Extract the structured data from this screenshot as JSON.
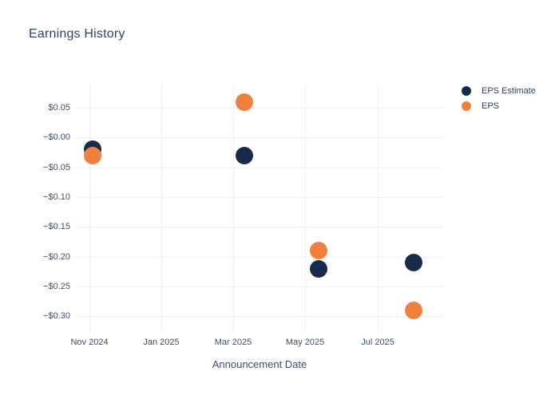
{
  "chart": {
    "title": "Earnings History"
  },
  "chart_data": {
    "type": "scatter",
    "title": "Earnings History",
    "xlabel": "Announcement Date",
    "ylabel": "",
    "grid": true,
    "legend_position": "right-top",
    "xlim": [
      "2024-10-20",
      "2025-08-25"
    ],
    "ylim": [
      -0.33,
      0.09
    ],
    "x_ticks": [
      {
        "date": "2024-11-01",
        "label": "Nov 2024"
      },
      {
        "date": "2025-01-01",
        "label": "Jan 2025"
      },
      {
        "date": "2025-03-01",
        "label": "Mar 2025"
      },
      {
        "date": "2025-05-01",
        "label": "May 2025"
      },
      {
        "date": "2025-07-01",
        "label": "Jul 2025"
      }
    ],
    "y_ticks": [
      {
        "value": 0.05,
        "label": "$0.05"
      },
      {
        "value": 0.0,
        "label": "−$0.00"
      },
      {
        "value": -0.05,
        "label": "−$0.05"
      },
      {
        "value": -0.1,
        "label": "−$0.10"
      },
      {
        "value": -0.15,
        "label": "−$0.15"
      },
      {
        "value": -0.2,
        "label": "−$0.20"
      },
      {
        "value": -0.25,
        "label": "−$0.25"
      },
      {
        "value": -0.3,
        "label": "−$0.30"
      }
    ],
    "series": [
      {
        "name": "EPS Estimate",
        "color": "#172b4a",
        "marker": "circle",
        "points": [
          {
            "x": "2024-11-04",
            "y": -0.02
          },
          {
            "x": "2025-03-10",
            "y": -0.03
          },
          {
            "x": "2025-05-12",
            "y": -0.22
          },
          {
            "x": "2025-08-01",
            "y": -0.21
          }
        ]
      },
      {
        "name": "EPS",
        "color": "#f0813c",
        "marker": "circle",
        "points": [
          {
            "x": "2024-11-04",
            "y": -0.03
          },
          {
            "x": "2025-03-10",
            "y": 0.06
          },
          {
            "x": "2025-05-12",
            "y": -0.19
          },
          {
            "x": "2025-08-01",
            "y": -0.29
          }
        ]
      }
    ]
  }
}
